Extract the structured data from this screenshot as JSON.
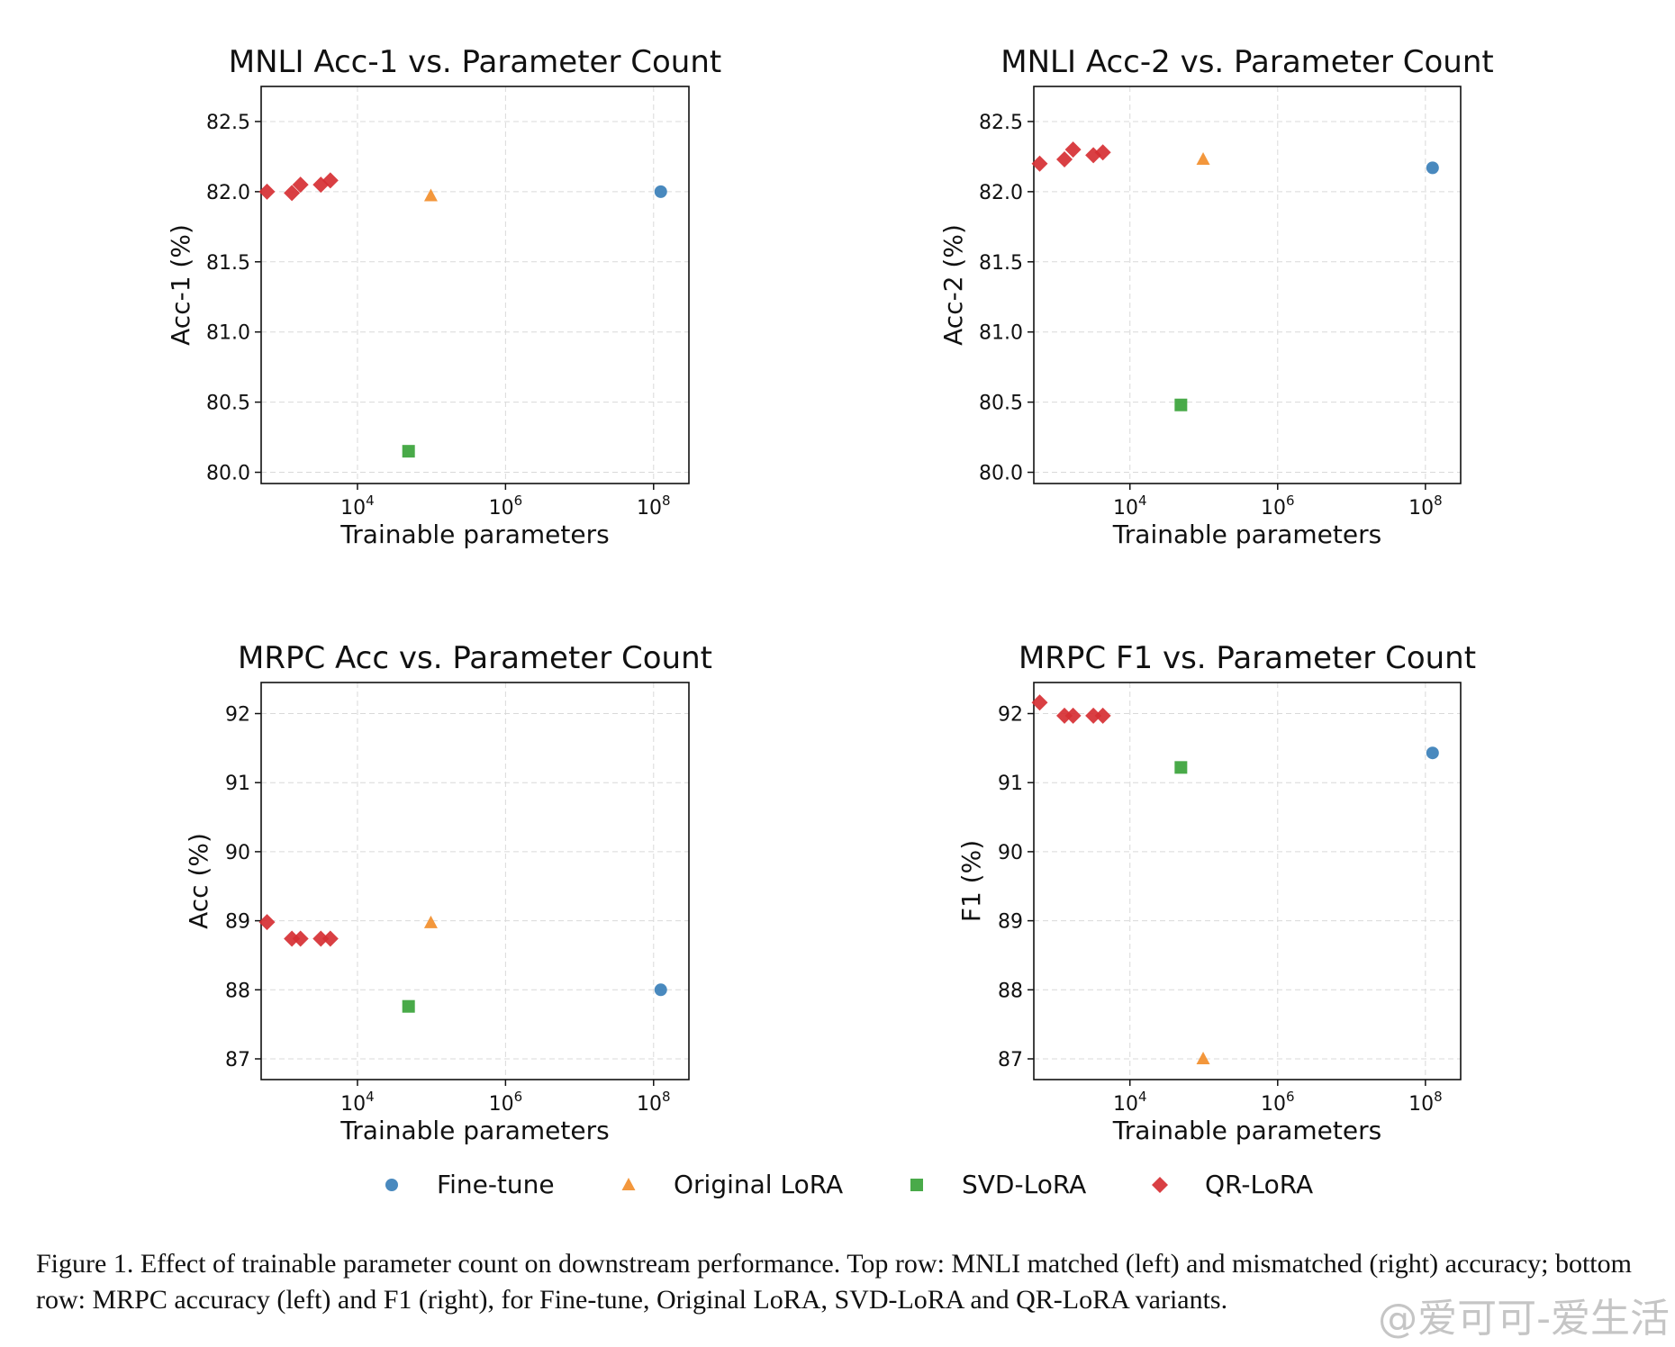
{
  "legend": [
    {
      "name": "Fine-tune",
      "color": "#3a7fb8",
      "marker": "circle"
    },
    {
      "name": "Original LoRA",
      "color": "#f28e2b",
      "marker": "triangle"
    },
    {
      "name": "SVD-LoRA",
      "color": "#3aa33a",
      "marker": "square"
    },
    {
      "name": "QR-LoRA",
      "color": "#d62f33",
      "marker": "diamond"
    }
  ],
  "chart_data": [
    {
      "type": "scatter",
      "title": "MNLI Acc-1 vs. Parameter Count",
      "xlabel": "Trainable parameters",
      "ylabel": "Acc-1 (%)",
      "xscale": "log",
      "xlim": [
        500,
        300000000
      ],
      "ylim": [
        79.92,
        82.75
      ],
      "xticks": [
        10000,
        1000000,
        100000000
      ],
      "yticks": [
        80.0,
        80.5,
        81.0,
        81.5,
        82.0,
        82.5
      ],
      "ytick_labels": [
        "80.0",
        "80.5",
        "81.0",
        "81.5",
        "82.0",
        "82.5"
      ],
      "grid": true,
      "series": [
        {
          "name": "Fine-tune",
          "points": [
            [
              125000000,
              82.0
            ]
          ]
        },
        {
          "name": "Original LoRA",
          "points": [
            [
              98000,
              81.97
            ]
          ]
        },
        {
          "name": "SVD-LoRA",
          "points": [
            [
              49000,
              80.15
            ]
          ]
        },
        {
          "name": "QR-LoRA",
          "points": [
            [
              600,
              82.0
            ],
            [
              1300,
              81.99
            ],
            [
              1700,
              82.05
            ],
            [
              3200,
              82.05
            ],
            [
              4300,
              82.08
            ]
          ]
        }
      ]
    },
    {
      "type": "scatter",
      "title": "MNLI Acc-2 vs. Parameter Count",
      "xlabel": "Trainable parameters",
      "ylabel": "Acc-2 (%)",
      "xscale": "log",
      "xlim": [
        500,
        300000000
      ],
      "ylim": [
        79.92,
        82.75
      ],
      "xticks": [
        10000,
        1000000,
        100000000
      ],
      "yticks": [
        80.0,
        80.5,
        81.0,
        81.5,
        82.0,
        82.5
      ],
      "ytick_labels": [
        "80.0",
        "80.5",
        "81.0",
        "81.5",
        "82.0",
        "82.5"
      ],
      "grid": true,
      "series": [
        {
          "name": "Fine-tune",
          "points": [
            [
              125000000,
              82.17
            ]
          ]
        },
        {
          "name": "Original LoRA",
          "points": [
            [
              98000,
              82.23
            ]
          ]
        },
        {
          "name": "SVD-LoRA",
          "points": [
            [
              49000,
              80.48
            ]
          ]
        },
        {
          "name": "QR-LoRA",
          "points": [
            [
              600,
              82.2
            ],
            [
              1300,
              82.23
            ],
            [
              1700,
              82.3
            ],
            [
              3200,
              82.26
            ],
            [
              4300,
              82.28
            ]
          ]
        }
      ]
    },
    {
      "type": "scatter",
      "title": "MRPC Acc vs. Parameter Count",
      "xlabel": "Trainable parameters",
      "ylabel": "Acc (%)",
      "xscale": "log",
      "xlim": [
        500,
        300000000
      ],
      "ylim": [
        86.7,
        92.45
      ],
      "xticks": [
        10000,
        1000000,
        100000000
      ],
      "yticks": [
        87,
        88,
        89,
        90,
        91,
        92
      ],
      "ytick_labels": [
        "87",
        "88",
        "89",
        "90",
        "91",
        "92"
      ],
      "grid": true,
      "series": [
        {
          "name": "Fine-tune",
          "points": [
            [
              125000000,
              88.0
            ]
          ]
        },
        {
          "name": "Original LoRA",
          "points": [
            [
              98000,
              88.97
            ]
          ]
        },
        {
          "name": "SVD-LoRA",
          "points": [
            [
              49000,
              87.76
            ]
          ]
        },
        {
          "name": "QR-LoRA",
          "points": [
            [
              600,
              88.98
            ],
            [
              1300,
              88.74
            ],
            [
              1700,
              88.74
            ],
            [
              3200,
              88.74
            ],
            [
              4300,
              88.74
            ]
          ]
        }
      ]
    },
    {
      "type": "scatter",
      "title": "MRPC F1 vs. Parameter Count",
      "xlabel": "Trainable parameters",
      "ylabel": "F1 (%)",
      "xscale": "log",
      "xlim": [
        500,
        300000000
      ],
      "ylim": [
        86.7,
        92.45
      ],
      "xticks": [
        10000,
        1000000,
        100000000
      ],
      "yticks": [
        87,
        88,
        89,
        90,
        91,
        92
      ],
      "ytick_labels": [
        "87",
        "88",
        "89",
        "90",
        "91",
        "92"
      ],
      "grid": true,
      "series": [
        {
          "name": "Fine-tune",
          "points": [
            [
              125000000,
              91.43
            ]
          ]
        },
        {
          "name": "Original LoRA",
          "points": [
            [
              98000,
              87.0
            ]
          ]
        },
        {
          "name": "SVD-LoRA",
          "points": [
            [
              49000,
              91.22
            ]
          ]
        },
        {
          "name": "QR-LoRA",
          "points": [
            [
              600,
              92.16
            ],
            [
              1300,
              91.97
            ],
            [
              1700,
              91.97
            ],
            [
              3200,
              91.97
            ],
            [
              4300,
              91.97
            ]
          ]
        }
      ]
    }
  ],
  "caption": "Figure 1. Effect of trainable parameter count on downstream performance. Top row: MNLI matched (left) and mismatched (right) accuracy; bottom row: MRPC accuracy (left) and F1 (right), for Fine-tune, Original LoRA, SVD-LoRA and QR-LoRA variants.",
  "watermark": "@爱可可-爱生活"
}
